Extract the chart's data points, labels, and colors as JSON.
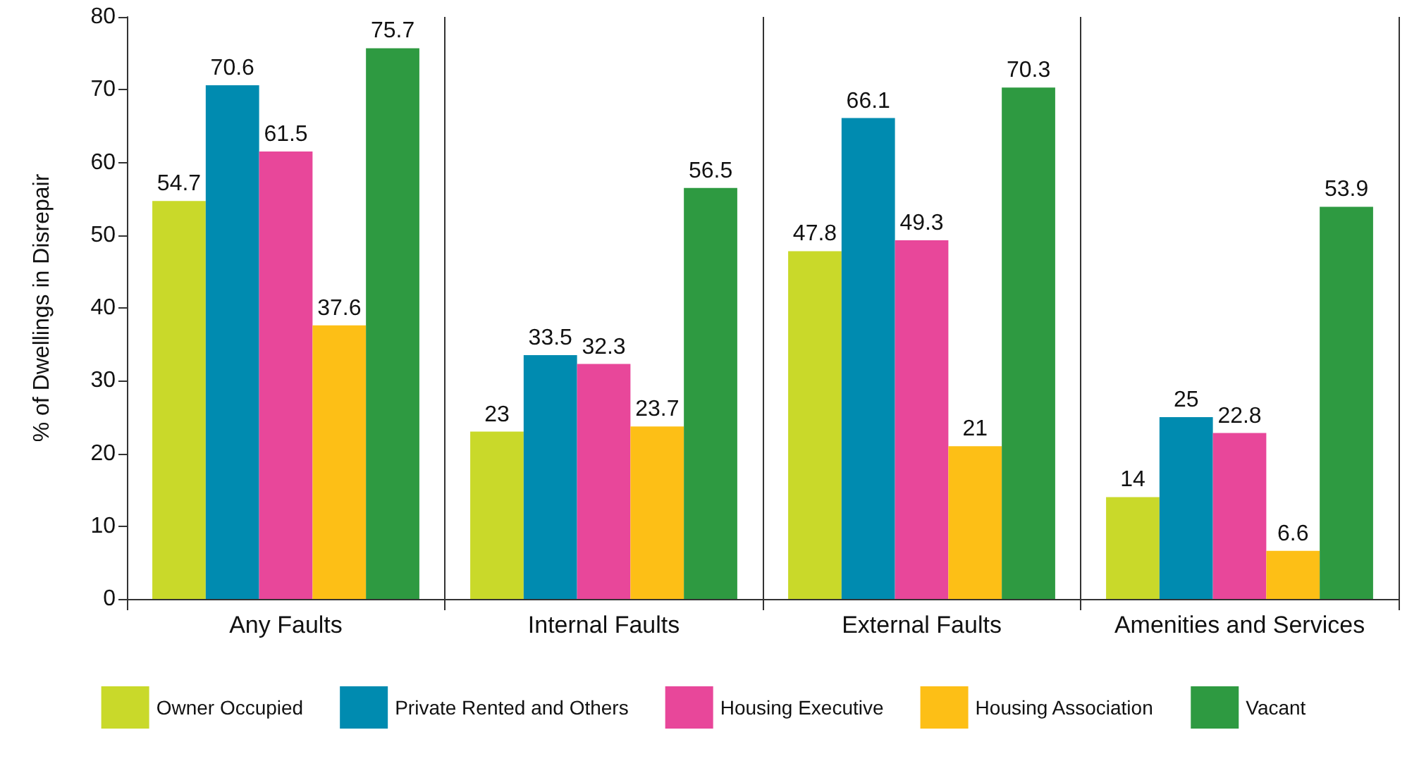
{
  "chart_data": {
    "type": "bar",
    "ylabel": "% of Dwellings in Disrepair",
    "categories": [
      "Any Faults",
      "Internal Faults",
      "External Faults",
      "Amenities and Services"
    ],
    "series": [
      {
        "name": "Owner Occupied",
        "color": "#c9d92a",
        "values": [
          54.7,
          23,
          47.8,
          14
        ]
      },
      {
        "name": "Private Rented and Others",
        "color": "#008bb0",
        "values": [
          70.6,
          33.5,
          66.1,
          25
        ]
      },
      {
        "name": "Housing Executive",
        "color": "#e8479a",
        "values": [
          61.5,
          32.3,
          49.3,
          22.8
        ]
      },
      {
        "name": "Housing Association",
        "color": "#fdbf16",
        "values": [
          37.6,
          23.7,
          21,
          6.6
        ]
      },
      {
        "name": "Vacant",
        "color": "#2e9a41",
        "values": [
          75.7,
          56.5,
          70.3,
          53.9
        ]
      }
    ],
    "ylim": [
      0,
      80
    ],
    "yticks": [
      0,
      10,
      20,
      30,
      40,
      50,
      60,
      70,
      80
    ],
    "grid": "x",
    "legend": "bottom",
    "data_labels": true
  }
}
